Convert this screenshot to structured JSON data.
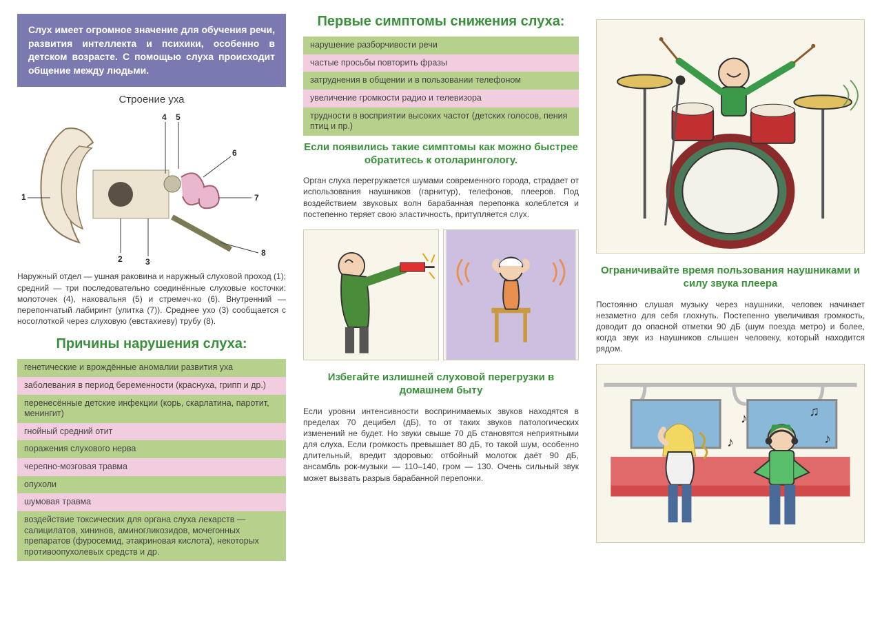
{
  "colors": {
    "intro_bg": "#7a7ab0",
    "green_row": "#b6d18c",
    "pink_row": "#f2cde0",
    "heading": "#3a8f3a",
    "illus_bg": "#f8f5ea",
    "illus_border": "#d0d0b0",
    "text": "#3d3d3d"
  },
  "col1": {
    "intro": "Слух имеет огромное значение для обучения речи, развития интеллекта и психики, особенно в детском возрасте. С помощью слуха происходит общение между людьми.",
    "diagram_title": "Строение уха",
    "diagram_labels": [
      "1",
      "2",
      "3",
      "4",
      "5",
      "6",
      "7",
      "8"
    ],
    "diagram_caption": "Наружный отдел — ушная раковина и наружный слуховой проход (1); средний — три последовательно соединённые слуховые косточки: молоточек (4), наковальня (5) и стремеч-ко (6). Внутренний — перепончатый лабиринт (улитка (7)). Среднее ухо (3) сообщается с носоглоткой через слуховую (евстахиеву) трубу (8).",
    "causes_title": "Причины нарушения слуха:",
    "causes": [
      {
        "text": "генетические и врождённые аномалии развития уха",
        "c": "green"
      },
      {
        "text": "заболевания в период беременности (краснуха, грипп и др.)",
        "c": "pink"
      },
      {
        "text": "перенесённые детские инфекции (корь, скарлатина, паротит, менингит)",
        "c": "green"
      },
      {
        "text": "гнойный средний отит",
        "c": "pink"
      },
      {
        "text": "поражения слухового нерва",
        "c": "green"
      },
      {
        "text": "черепно-мозговая травма",
        "c": "pink"
      },
      {
        "text": "опухоли",
        "c": "green"
      },
      {
        "text": "шумовая травма",
        "c": "pink"
      },
      {
        "text": "воздействие токсических для органа слуха лекарств — салицилатов, хининов, аминогликозидов, мочегонных препаратов (фуросемид, этакриновая кислота), некоторых противоопухолевых средств и др.",
        "c": "green"
      }
    ]
  },
  "col2": {
    "symptoms_title": "Первые симптомы снижения слуха:",
    "symptoms": [
      {
        "text": "нарушение разборчивости речи",
        "c": "green"
      },
      {
        "text": "частые просьбы повторить фразы",
        "c": "pink"
      },
      {
        "text": "затруднения в общении и в пользовании телефоном",
        "c": "green"
      },
      {
        "text": "увеличение громкости радио и телевизора",
        "c": "pink"
      },
      {
        "text": "трудности в восприятии высоких частот (детских голосов, пения птиц и пр.)",
        "c": "green"
      }
    ],
    "advice1": "Если появились такие симптомы как можно быстрее обратитесь к отоларингологу.",
    "para1": "Орган слуха перегружается шумами современного города, страдает от использования наушников (гарнитур), телефонов, плееров. Под воздействием звуковых волн барабанная перепонка колеблется и постепенно теряет свою эластичность, притупляется слух.",
    "advice2": "Избегайте излишней слуховой перегрузки в домашнем быту",
    "para2": "Если уровни интенсивности воспринимаемых звуков находятся в пределах 70 децибел (дБ), то от таких звуков патологических изменений не будет. Но звуки свыше 70 дБ становятся неприятными для слуха. Если громкость превышает 80 дБ, то такой шум, особенно длительный, вредит здоровью: отбойный молоток даёт 90 дБ, ансамбль рок-музыки — 110–140, гром — 130. Очень сильный звук может вызвать разрыв барабанной перепонки."
  },
  "col3": {
    "advice3": "Ограничивайте время пользования наушниками и силу звука плеера",
    "para3": "Постоянно слушая музыку через наушники, человек начинает незаметно для себя глохнуть. Постепенно увеличивая громкость, доводит до опасной отметки 90 дБ (шум поезда метро) и более, когда звук из наушников слышен человеку, который находится рядом."
  }
}
